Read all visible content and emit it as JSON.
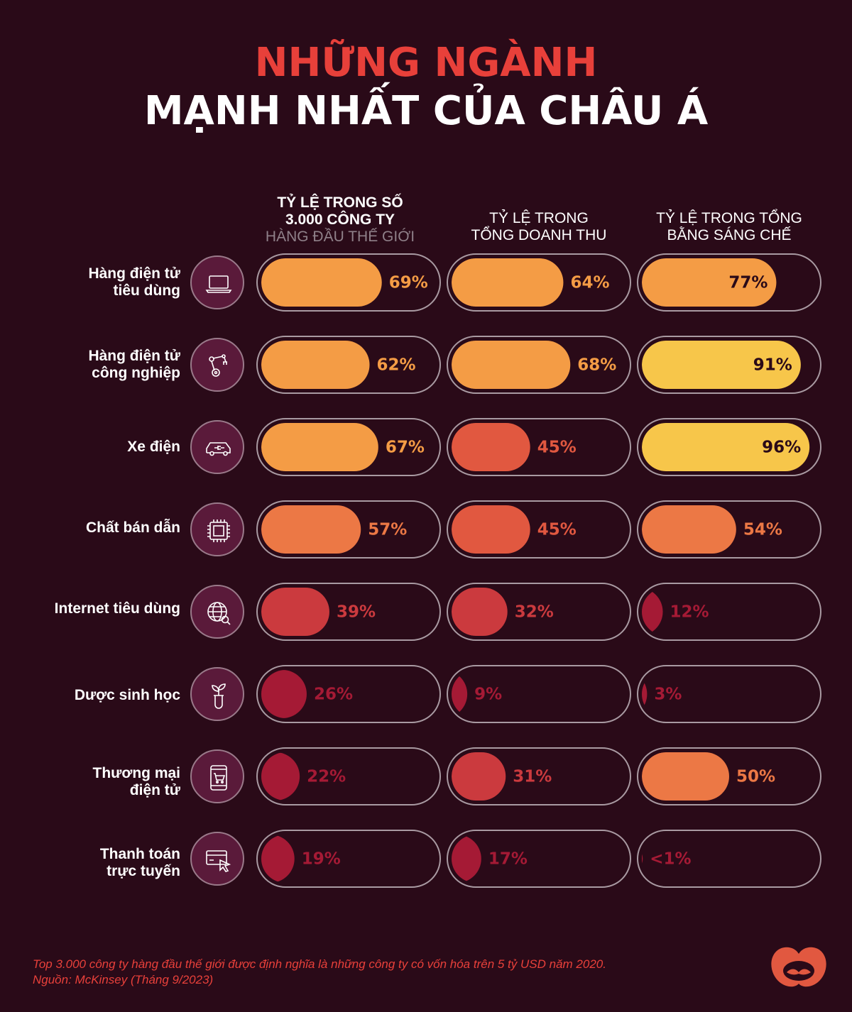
{
  "title": {
    "line1": "NHỮNG NGÀNH",
    "line2": "MẠNH NHẤT CỦA CHÂU Á"
  },
  "colors": {
    "background": "#2a0a18",
    "title_accent": "#e8403a",
    "icon_bg": "#5a1a3a",
    "track_border": "#a99aa2",
    "tier_yellow": "#f7c64a",
    "tier_light_orange": "#f49c45",
    "tier_orange": "#ec7845",
    "tier_red_orange": "#e15840",
    "tier_red": "#cb3a3e",
    "tier_dark_red": "#a51a35"
  },
  "chart_data": {
    "type": "bar",
    "title": "NHỮNG NGÀNH MẠNH NHẤT CỦA CHÂU Á",
    "columns": [
      {
        "key": "companies",
        "header_bold_line1": "TỶ LỆ TRONG SỐ",
        "header_bold_line2": "3.000 CÔNG TY",
        "header_dim": "HÀNG ĐẦU THẾ GIỚI"
      },
      {
        "key": "revenue",
        "header_line1": "TỶ LỆ TRONG",
        "header_line2": "TỔNG DOANH THU"
      },
      {
        "key": "patents",
        "header_line1": "TỶ LỆ TRONG TỔNG",
        "header_line2": "BẰNG SÁNG CHẾ"
      }
    ],
    "unit": "%",
    "categories": [
      {
        "label_line1": "Hàng điện tử",
        "label_line2": "tiêu dùng",
        "icon": "laptop-icon"
      },
      {
        "label_line1": "Hàng điện tử",
        "label_line2": "công nghiệp",
        "icon": "robot-arm-icon"
      },
      {
        "label_line1": "Xe điện",
        "label_line2": "",
        "icon": "electric-car-icon"
      },
      {
        "label_line1": "Chất bán dẫn",
        "label_line2": "",
        "icon": "chip-icon"
      },
      {
        "label_line1": "Internet tiêu dùng",
        "label_line2": "",
        "icon": "globe-search-icon"
      },
      {
        "label_line1": "Dược sinh học",
        "label_line2": "",
        "icon": "plant-test-tube-icon"
      },
      {
        "label_line1": "Thương mại",
        "label_line2": "điện tử",
        "icon": "phone-cart-icon"
      },
      {
        "label_line1": "Thanh toán",
        "label_line2": "trực tuyến",
        "icon": "card-cursor-icon"
      }
    ],
    "series": [
      {
        "values": [
          69,
          62,
          67,
          57,
          39,
          26,
          22,
          19
        ],
        "labels": [
          "69%",
          "62%",
          "67%",
          "57%",
          "39%",
          "26%",
          "22%",
          "19%"
        ]
      },
      {
        "values": [
          64,
          68,
          45,
          45,
          32,
          9,
          31,
          17
        ],
        "labels": [
          "64%",
          "68%",
          "45%",
          "45%",
          "32%",
          "9%",
          "31%",
          "17%"
        ]
      },
      {
        "values": [
          77,
          91,
          96,
          54,
          12,
          3,
          50,
          0.5
        ],
        "labels": [
          "77%",
          "91%",
          "96%",
          "54%",
          "12%",
          "3%",
          "50%",
          "<1%"
        ]
      }
    ],
    "ylim": [
      0,
      100
    ]
  },
  "footnote": {
    "line1": "Top 3.000 công ty hàng đầu thế giới được định nghĩa là những công ty có vốn hóa trên 5 tỷ USD năm 2020.",
    "line2": "Nguồn: McKinsey (Tháng 9/2023)"
  }
}
